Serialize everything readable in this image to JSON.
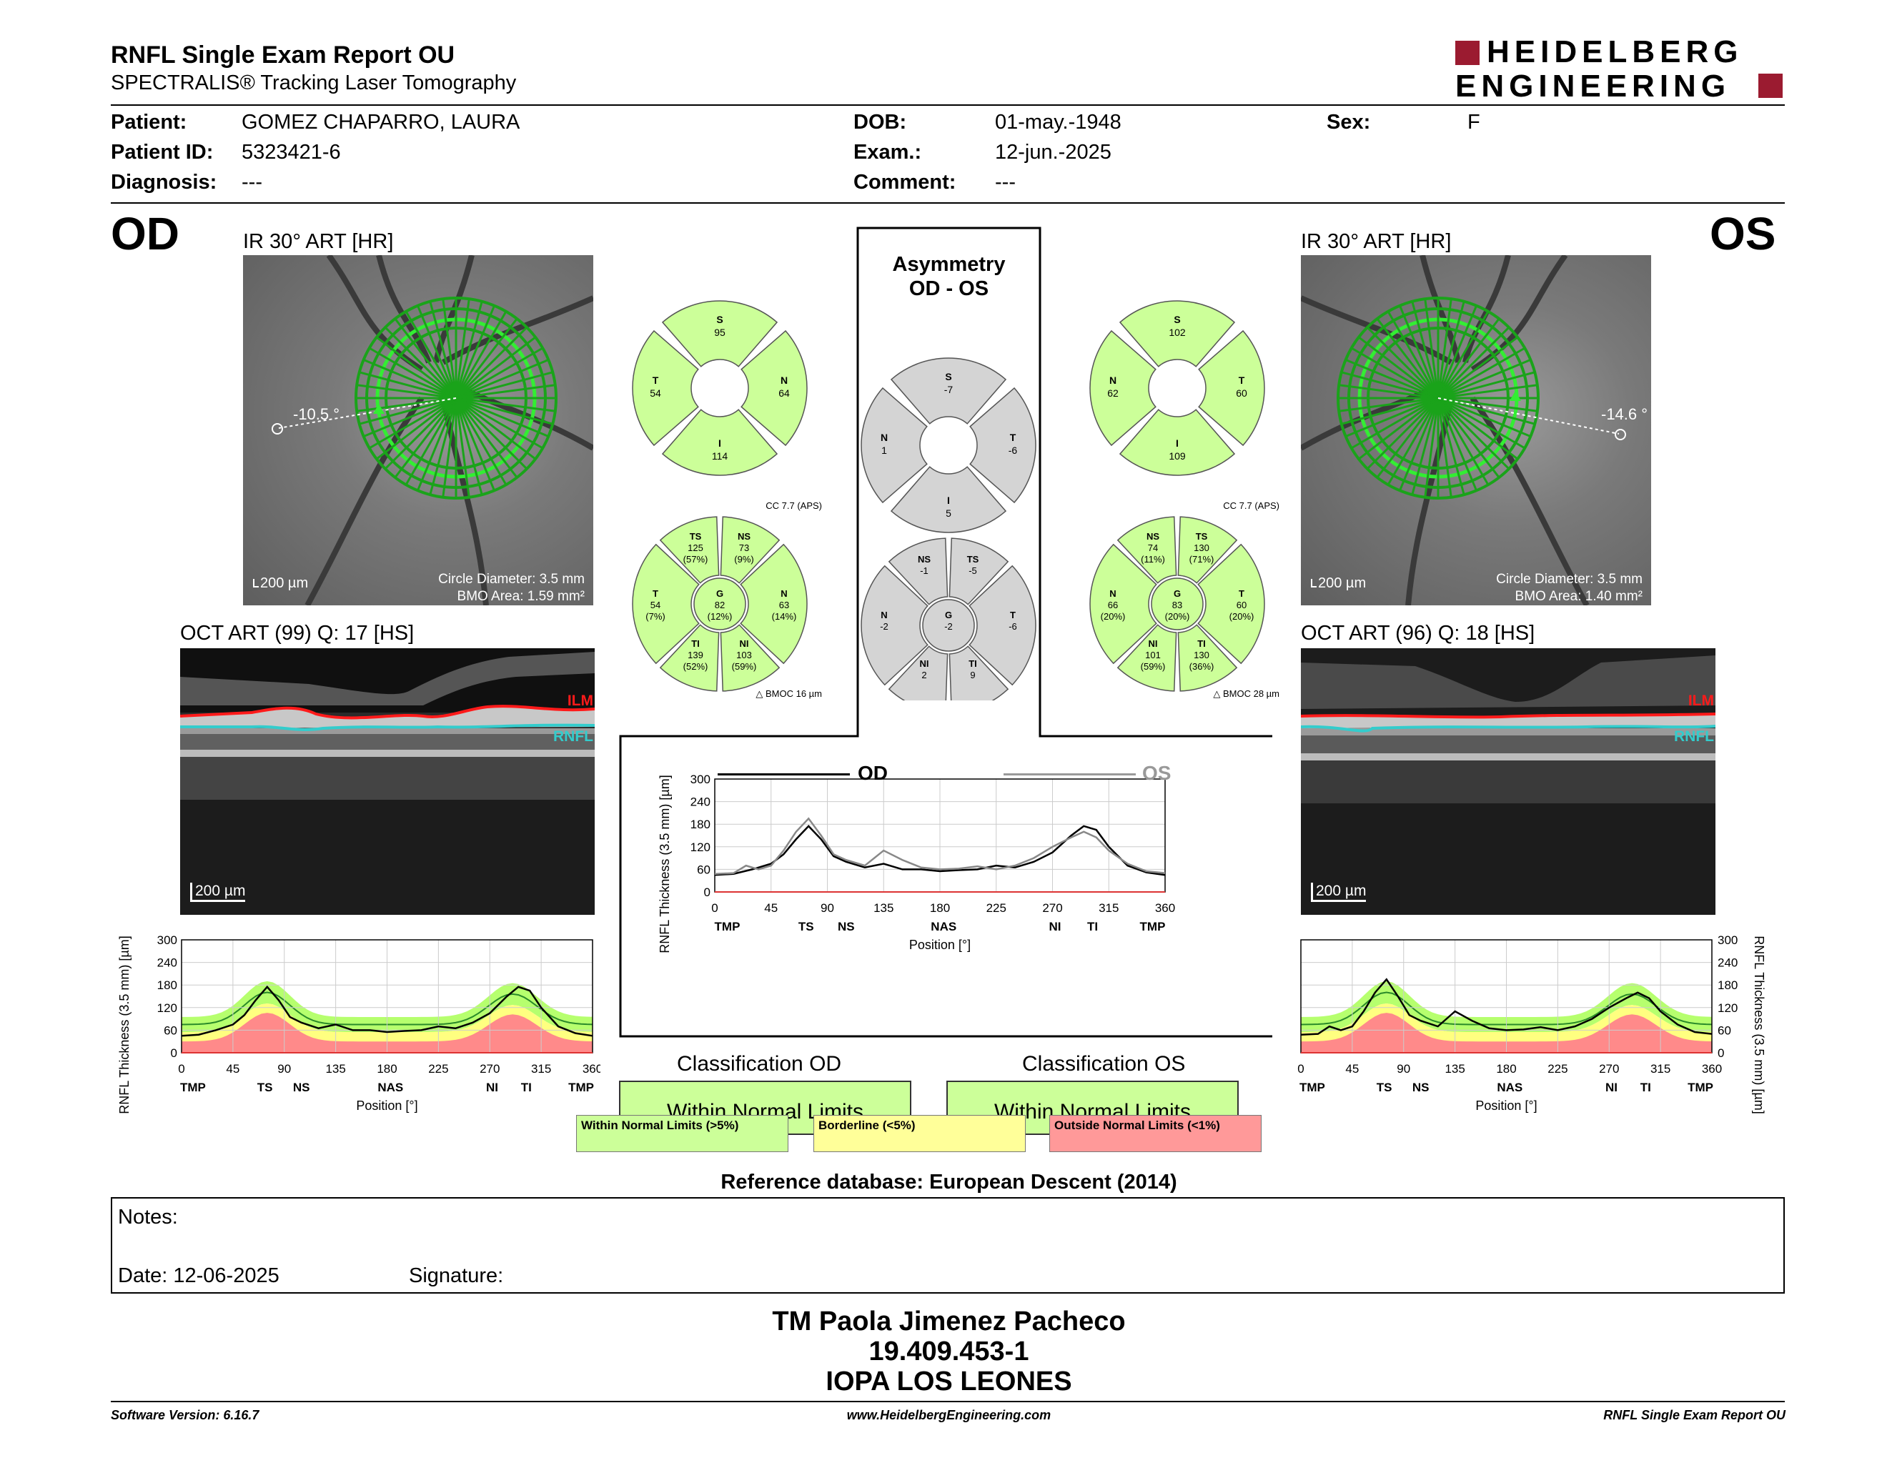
{
  "header": {
    "title": "RNFL Single Exam Report OU",
    "subtitle": "SPECTRALIS® Tracking Laser Tomography",
    "logo_line1": "HEIDELBERG",
    "logo_line2": "ENGINEERING"
  },
  "patient": {
    "patient_label": "Patient:",
    "patient_value": "GOMEZ CHAPARRO, LAURA",
    "id_label": "Patient ID:",
    "id_value": "5323421-6",
    "diagnosis_label": "Diagnosis:",
    "diagnosis_value": "---",
    "dob_label": "DOB:",
    "dob_value": "01-may.-1948",
    "exam_label": "Exam.:",
    "exam_value": "12-jun.-2025",
    "comment_label": "Comment:",
    "comment_value": "---",
    "sex_label": "Sex:",
    "sex_value": "F"
  },
  "od": {
    "eye": "OD",
    "ir_label": "IR 30° ART [HR]",
    "angle": "-10.5 °",
    "scale": "200 µm",
    "circle_diameter": "Circle Diameter: 3.5 mm",
    "bmo_area": "BMO Area: 1.59 mm²",
    "oct_label": "OCT ART (99) Q: 17 [HS]",
    "oct_scale": "200 µm",
    "ilm": "ILM",
    "rnfl": "RNFL"
  },
  "os": {
    "eye": "OS",
    "ir_label": "IR 30° ART [HR]",
    "angle": "-14.6 °",
    "scale": "200 µm",
    "circle_diameter": "Circle Diameter: 3.5 mm",
    "bmo_area": "BMO Area: 1.40 mm²",
    "oct_label": "OCT ART (96) Q: 18 [HS]",
    "oct_scale": "200 µm",
    "ilm": "ILM",
    "rnfl": "RNFL"
  },
  "asymmetry": {
    "title1": "Asymmetry",
    "title2": "OD - OS"
  },
  "quad_od": {
    "S": "95",
    "T": "54",
    "N": "64",
    "I": "114"
  },
  "quad_os": {
    "S": "102",
    "N": "62",
    "T": "60",
    "I": "109"
  },
  "quad_diff": {
    "S": "-7",
    "N": "1",
    "T": "-6",
    "I": "5"
  },
  "sector_od": {
    "cc": "CC 7.7 (APS)",
    "bmo": "BMOC 16 µm",
    "TS": [
      "125",
      "(57%)"
    ],
    "NS": [
      "73",
      "(9%)"
    ],
    "T": [
      "54",
      "(7%)"
    ],
    "G": [
      "82",
      "(12%)"
    ],
    "N": [
      "63",
      "(14%)"
    ],
    "TI": [
      "139",
      "(52%)"
    ],
    "NI": [
      "103",
      "(59%)"
    ]
  },
  "sector_os": {
    "cc": "CC 7.7 (APS)",
    "bmo": "BMOC 28 µm",
    "NS": [
      "74",
      "(11%)"
    ],
    "TS": [
      "130",
      "(71%)"
    ],
    "N": [
      "66",
      "(20%)"
    ],
    "G": [
      "83",
      "(20%)"
    ],
    "T": [
      "60",
      "(20%)"
    ],
    "NI": [
      "101",
      "(59%)"
    ],
    "TI": [
      "130",
      "(36%)"
    ]
  },
  "sector_diff": {
    "NS": "-1",
    "TS": "-5",
    "N": "-2",
    "G": "-2",
    "T": "-6",
    "NI": "2",
    "TI": "9"
  },
  "classification": {
    "od_title": "Classification OD",
    "od_value": "Within Normal Limits",
    "os_title": "Classification OS",
    "os_value": "Within Normal Limits",
    "legend_wnl": "Within Normal Limits (>5%)",
    "legend_bl": "Borderline (<5%)",
    "legend_onl": "Outside Normal Limits (<1%)"
  },
  "reference_db": "Reference database: European Descent (2014)",
  "notes": {
    "label": "Notes:",
    "date": "Date: 12-06-2025",
    "signature": "Signature:"
  },
  "signer": {
    "name": "TM Paola Jimenez Pacheco",
    "rut": "19.409.453-1",
    "place": "IOPA LOS LEONES"
  },
  "footer": {
    "version": "Software Version: 6.16.7",
    "url": "www.HeidelbergEngineering.com",
    "report": "RNFL Single Exam Report OU"
  },
  "colors": {
    "wnl": "#ccff99",
    "borderline": "#ffff99",
    "onl": "#ff9999",
    "logo_red": "#9b1b30",
    "diff_gray": "#d4d4d4"
  },
  "chart_data": [
    {
      "type": "line",
      "ylabel": "RNFL Thickness (3.5 mm) [µm]",
      "xlabel": "Position [°]",
      "xticks": [
        0,
        45,
        90,
        135,
        180,
        225,
        270,
        315,
        360
      ],
      "yticks": [
        0,
        60,
        120,
        180,
        240,
        300
      ],
      "xlim": [
        0,
        360
      ],
      "ylim": [
        0,
        300
      ],
      "sector_labels": [
        "TMP",
        "TS",
        "NS",
        "NAS",
        "NI",
        "TI",
        "TMP"
      ],
      "sector_positions": [
        10,
        73,
        105,
        183,
        272,
        302,
        350
      ],
      "series": [
        {
          "name": "OD",
          "x": [
            0,
            15,
            30,
            45,
            55,
            65,
            75,
            85,
            95,
            105,
            120,
            135,
            150,
            165,
            180,
            195,
            210,
            225,
            240,
            255,
            270,
            285,
            295,
            305,
            315,
            330,
            345,
            360
          ],
          "values": [
            45,
            48,
            60,
            75,
            100,
            140,
            175,
            140,
            95,
            80,
            65,
            75,
            60,
            60,
            55,
            58,
            60,
            70,
            65,
            80,
            105,
            150,
            175,
            165,
            120,
            70,
            52,
            45
          ]
        }
      ]
    },
    {
      "type": "line",
      "ylabel": "RNFL Thickness (3.5 mm) [µm]",
      "xlabel": "Position [°]",
      "xticks": [
        0,
        45,
        90,
        135,
        180,
        225,
        270,
        315,
        360
      ],
      "yticks": [
        0,
        60,
        120,
        180,
        240,
        300
      ],
      "xlim": [
        0,
        360
      ],
      "ylim": [
        0,
        300
      ],
      "sector_labels": [
        "TMP",
        "TS",
        "NS",
        "NAS",
        "NI",
        "TI",
        "TMP"
      ],
      "sector_positions": [
        10,
        73,
        105,
        183,
        272,
        302,
        350
      ],
      "series": [
        {
          "name": "OD",
          "x": [
            0,
            15,
            30,
            45,
            55,
            65,
            75,
            85,
            95,
            105,
            120,
            135,
            150,
            165,
            180,
            195,
            210,
            225,
            240,
            255,
            270,
            285,
            295,
            305,
            315,
            330,
            345,
            360
          ],
          "values": [
            45,
            48,
            60,
            75,
            100,
            140,
            175,
            140,
            95,
            80,
            65,
            75,
            60,
            60,
            55,
            58,
            60,
            70,
            65,
            80,
            105,
            150,
            175,
            165,
            120,
            70,
            52,
            45
          ]
        },
        {
          "name": "OS",
          "x": [
            0,
            15,
            25,
            35,
            45,
            55,
            65,
            75,
            85,
            95,
            105,
            120,
            135,
            150,
            165,
            180,
            195,
            210,
            225,
            240,
            255,
            270,
            285,
            295,
            305,
            315,
            330,
            345,
            360
          ],
          "values": [
            48,
            50,
            70,
            60,
            70,
            110,
            160,
            195,
            150,
            100,
            85,
            70,
            110,
            85,
            65,
            60,
            62,
            68,
            60,
            70,
            90,
            120,
            145,
            160,
            145,
            110,
            75,
            55,
            50
          ]
        }
      ]
    },
    {
      "type": "line",
      "ylabel": "RNFL Thickness (3.5 mm) [µm]",
      "xlabel": "Position [°]",
      "xticks": [
        0,
        45,
        90,
        135,
        180,
        225,
        270,
        315,
        360
      ],
      "yticks": [
        0,
        60,
        120,
        180,
        240,
        300
      ],
      "xlim": [
        0,
        360
      ],
      "ylim": [
        0,
        300
      ],
      "sector_labels": [
        "TMP",
        "TS",
        "NS",
        "NAS",
        "NI",
        "TI",
        "TMP"
      ],
      "sector_positions": [
        10,
        73,
        105,
        183,
        272,
        302,
        350
      ],
      "series": [
        {
          "name": "OS",
          "x": [
            0,
            15,
            25,
            35,
            45,
            55,
            65,
            75,
            85,
            95,
            105,
            120,
            135,
            150,
            165,
            180,
            195,
            210,
            225,
            240,
            255,
            270,
            285,
            295,
            305,
            315,
            330,
            345,
            360
          ],
          "values": [
            48,
            50,
            70,
            60,
            70,
            110,
            160,
            195,
            150,
            100,
            85,
            70,
            110,
            85,
            65,
            60,
            62,
            68,
            60,
            70,
            90,
            120,
            145,
            160,
            145,
            110,
            75,
            55,
            50
          ]
        }
      ]
    }
  ]
}
